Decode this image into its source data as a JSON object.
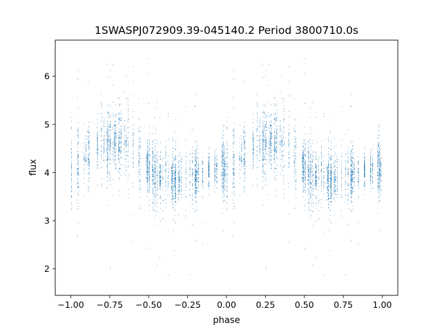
{
  "chart_data": {
    "type": "scatter",
    "title": "1SWASPJ072909.39-045140.2 Period 3800710.0s",
    "xlabel": "phase",
    "ylabel": "flux",
    "xlim": [
      -1.1,
      1.1
    ],
    "ylim": [
      1.45,
      6.75
    ],
    "x_ticks": [
      -1.0,
      -0.75,
      -0.5,
      -0.25,
      0.0,
      0.25,
      0.5,
      0.75,
      1.0
    ],
    "x_tick_labels": [
      "−1.00",
      "−0.75",
      "−0.50",
      "−0.25",
      "0.00",
      "0.25",
      "0.50",
      "0.75",
      "1.00"
    ],
    "y_ticks": [
      2,
      3,
      4,
      5,
      6
    ],
    "y_tick_labels": [
      "2",
      "3",
      "4",
      "5",
      "6"
    ],
    "grid": false,
    "marker_color": "#1f77b4",
    "series": [
      {
        "phase_range": [
          -1.0,
          1.0
        ],
        "mirrored_period": 1.0,
        "profile_phase": [
          0.0,
          0.05,
          0.1,
          0.15,
          0.2,
          0.25,
          0.3,
          0.35,
          0.4,
          0.45,
          0.5,
          0.55,
          0.6,
          0.65,
          0.7,
          0.75,
          0.8,
          0.85,
          0.9,
          0.95,
          1.0
        ],
        "profile_flux": [
          4.1,
          4.2,
          4.35,
          4.5,
          4.6,
          4.6,
          4.65,
          4.6,
          4.45,
          4.25,
          4.05,
          3.95,
          3.9,
          3.85,
          3.85,
          3.9,
          3.95,
          4.0,
          4.05,
          4.1,
          4.1
        ],
        "flux_min": 1.7,
        "flux_max": 6.6
      }
    ]
  }
}
